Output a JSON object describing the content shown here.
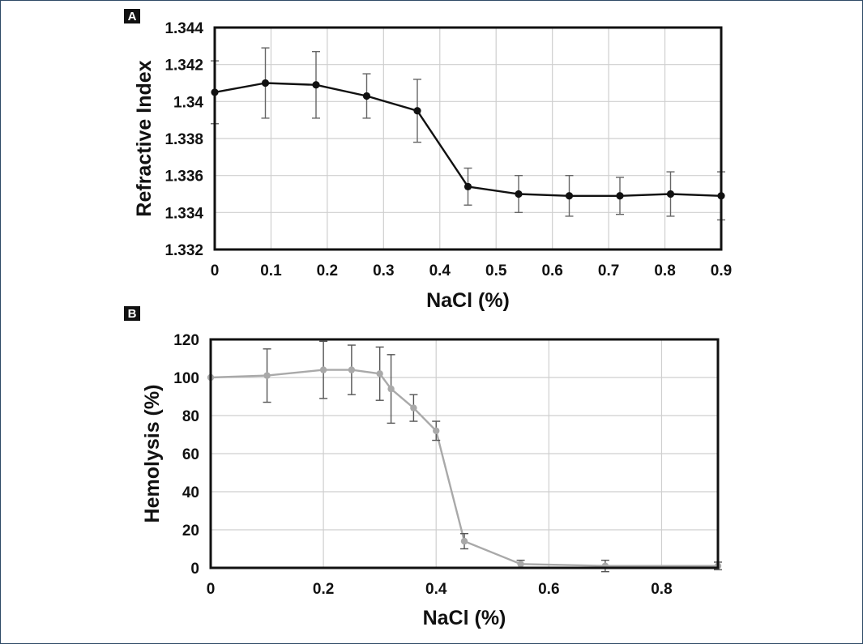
{
  "chart_data": [
    {
      "type": "line",
      "panel": "A",
      "title": "",
      "xlabel": "NaCl (%)",
      "ylabel": "Refractive Index",
      "xlim": [
        0,
        0.9
      ],
      "ylim": [
        1.332,
        1.344
      ],
      "grid": true,
      "color": "#111111",
      "x_ticks": [
        "0",
        "0.1",
        "0.2",
        "0.3",
        "0.4",
        "0.5",
        "0.6",
        "0.7",
        "0.8",
        "0.9"
      ],
      "y_ticks": [
        "1.332",
        "1.334",
        "1.336",
        "1.338",
        "1.34",
        "1.342",
        "1.344"
      ],
      "series": [
        {
          "name": "Refractive Index",
          "x": [
            0,
            0.09,
            0.18,
            0.27,
            0.36,
            0.45,
            0.54,
            0.63,
            0.72,
            0.81,
            0.9
          ],
          "values": [
            1.3405,
            1.341,
            1.3409,
            1.3403,
            1.3395,
            1.3354,
            1.335,
            1.3349,
            1.3349,
            1.335,
            1.3349
          ],
          "error": [
            0.0017,
            0.0019,
            0.0018,
            0.0012,
            0.0017,
            0.001,
            0.001,
            0.0011,
            0.001,
            0.0012,
            0.0013
          ]
        }
      ]
    },
    {
      "type": "line",
      "panel": "B",
      "title": "",
      "xlabel": "NaCl (%)",
      "ylabel": "Hemolysis (%)",
      "xlim": [
        0,
        0.9
      ],
      "ylim": [
        0,
        120
      ],
      "grid": true,
      "color": "#a9a9a9",
      "x_ticks": [
        "0",
        "0.2",
        "0.4",
        "0.6",
        "0.8"
      ],
      "y_ticks": [
        "0",
        "20",
        "40",
        "60",
        "80",
        "100",
        "120"
      ],
      "series": [
        {
          "name": "Hemolysis",
          "x": [
            0,
            0.1,
            0.2,
            0.25,
            0.3,
            0.32,
            0.36,
            0.4,
            0.45,
            0.55,
            0.7,
            0.9
          ],
          "values": [
            100,
            101,
            104,
            104,
            102,
            94,
            84,
            72,
            14,
            2,
            1,
            1
          ],
          "error": [
            0,
            14,
            15,
            13,
            14,
            18,
            7,
            5,
            4,
            2,
            3,
            2
          ]
        }
      ]
    }
  ]
}
